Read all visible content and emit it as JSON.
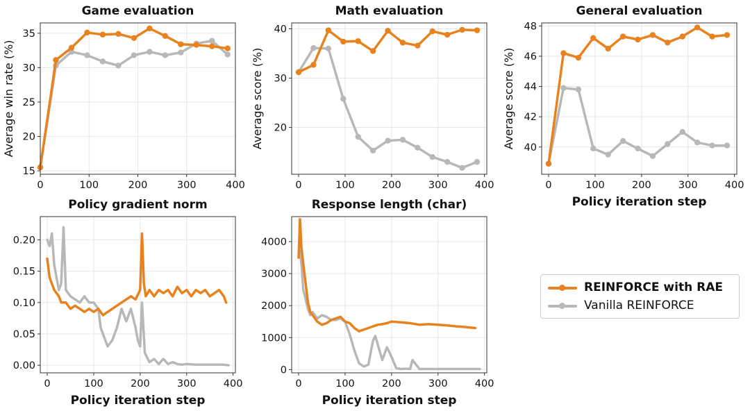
{
  "colors": {
    "rae": "#e8821e",
    "vanilla": "#b8b8b8"
  },
  "legend": [
    {
      "label": "REINFORCE with RAE",
      "series": "rae",
      "bold": true
    },
    {
      "label": "Vanilla REINFORCE",
      "series": "vanilla",
      "bold": false
    }
  ],
  "chart_data": [
    {
      "type": "line",
      "title": "Game evaluation",
      "xlabel": "",
      "ylabel": "Average win rate (%)",
      "xlim": [
        0,
        400
      ],
      "ylim": [
        14.5,
        36.5
      ],
      "xticks": [
        0,
        100,
        200,
        300,
        400
      ],
      "yticks": [
        15,
        20,
        25,
        30,
        35
      ],
      "grid": true,
      "markers": true,
      "series": [
        {
          "name": "REINFORCE with RAE",
          "key": "rae",
          "x": [
            0,
            32,
            64,
            96,
            128,
            160,
            192,
            224,
            256,
            288,
            320,
            352,
            384
          ],
          "y": [
            15.5,
            31.1,
            32.9,
            35.1,
            34.8,
            34.9,
            34.3,
            35.7,
            34.6,
            33.4,
            33.3,
            33.1,
            32.8
          ]
        },
        {
          "name": "Vanilla REINFORCE",
          "key": "vanilla",
          "x": [
            0,
            32,
            64,
            96,
            128,
            160,
            192,
            224,
            256,
            288,
            320,
            352,
            384
          ],
          "y": [
            15.5,
            30.3,
            32.3,
            31.8,
            30.9,
            30.3,
            31.8,
            32.3,
            31.8,
            32.2,
            33.5,
            33.9,
            31.9
          ]
        }
      ]
    },
    {
      "type": "line",
      "title": "Math evaluation",
      "xlabel": "",
      "ylabel": "Average score (%)",
      "xlim": [
        -15,
        405
      ],
      "ylim": [
        10.5,
        41.2
      ],
      "xticks": [
        0,
        100,
        200,
        300,
        400
      ],
      "yticks": [
        20,
        30,
        40
      ],
      "grid": true,
      "markers": true,
      "series": [
        {
          "name": "REINFORCE with RAE",
          "key": "rae",
          "x": [
            0,
            32,
            64,
            96,
            128,
            160,
            192,
            224,
            256,
            288,
            320,
            352,
            384
          ],
          "y": [
            31.2,
            32.7,
            39.7,
            37.4,
            37.5,
            35.5,
            39.6,
            37.2,
            36.6,
            39.5,
            38.8,
            39.8,
            39.7
          ]
        },
        {
          "name": "Vanilla REINFORCE",
          "key": "vanilla",
          "x": [
            0,
            32,
            64,
            96,
            128,
            160,
            192,
            224,
            256,
            288,
            320,
            352,
            384
          ],
          "y": [
            31.2,
            36.1,
            36.0,
            25.8,
            18.1,
            15.3,
            17.3,
            17.5,
            15.9,
            14.0,
            13.0,
            11.8,
            13.0
          ]
        }
      ]
    },
    {
      "type": "line",
      "title": "General evaluation",
      "xlabel": "Policy iteration step",
      "ylabel": "Average score (%)",
      "xlim": [
        -15,
        405
      ],
      "ylim": [
        38.2,
        48.2
      ],
      "xticks": [
        0,
        100,
        200,
        300,
        400
      ],
      "yticks": [
        40,
        42,
        44,
        46,
        48
      ],
      "grid": true,
      "markers": true,
      "series": [
        {
          "name": "REINFORCE with RAE",
          "key": "rae",
          "x": [
            0,
            32,
            64,
            96,
            128,
            160,
            192,
            224,
            256,
            288,
            320,
            352,
            384
          ],
          "y": [
            38.9,
            46.2,
            45.9,
            47.2,
            46.5,
            47.3,
            47.1,
            47.4,
            46.9,
            47.3,
            47.9,
            47.3,
            47.4
          ]
        },
        {
          "name": "Vanilla REINFORCE",
          "key": "vanilla",
          "x": [
            0,
            32,
            64,
            96,
            128,
            160,
            192,
            224,
            256,
            288,
            320,
            352,
            384
          ],
          "y": [
            38.9,
            43.9,
            43.8,
            39.9,
            39.5,
            40.4,
            39.9,
            39.4,
            40.2,
            41.0,
            40.3,
            40.1,
            40.1
          ]
        }
      ]
    },
    {
      "type": "line",
      "title": "Policy gradient norm",
      "xlabel": "Policy iteration step",
      "ylabel": "",
      "xlim": [
        -15,
        405
      ],
      "ylim": [
        -0.012,
        0.237
      ],
      "xticks": [
        0,
        100,
        200,
        300,
        400
      ],
      "yticks": [
        0.0,
        0.05,
        0.1,
        0.15,
        0.2
      ],
      "ytick_labels": [
        "0.00",
        "0.05",
        "0.10",
        "0.15",
        "0.20"
      ],
      "grid": true,
      "markers": false,
      "series": [
        {
          "name": "REINFORCE with RAE",
          "key": "rae",
          "x": [
            0,
            5,
            10,
            15,
            20,
            25,
            30,
            40,
            50,
            60,
            70,
            80,
            90,
            100,
            110,
            120,
            130,
            140,
            150,
            160,
            170,
            180,
            190,
            200,
            204,
            208,
            212,
            220,
            230,
            240,
            250,
            260,
            270,
            280,
            290,
            300,
            310,
            320,
            330,
            340,
            350,
            360,
            370,
            380,
            385
          ],
          "y": [
            0.17,
            0.14,
            0.13,
            0.12,
            0.115,
            0.11,
            0.1,
            0.1,
            0.09,
            0.095,
            0.09,
            0.085,
            0.09,
            0.085,
            0.09,
            0.08,
            0.085,
            0.09,
            0.095,
            0.1,
            0.105,
            0.11,
            0.105,
            0.12,
            0.21,
            0.13,
            0.11,
            0.12,
            0.11,
            0.12,
            0.115,
            0.12,
            0.11,
            0.125,
            0.115,
            0.12,
            0.11,
            0.12,
            0.115,
            0.12,
            0.11,
            0.115,
            0.12,
            0.11,
            0.1
          ]
        },
        {
          "name": "Vanilla REINFORCE",
          "key": "vanilla",
          "x": [
            0,
            5,
            10,
            15,
            20,
            25,
            30,
            35,
            40,
            50,
            60,
            70,
            80,
            90,
            100,
            110,
            115,
            120,
            130,
            140,
            150,
            160,
            170,
            180,
            190,
            195,
            200,
            204,
            210,
            220,
            230,
            240,
            250,
            260,
            270,
            280,
            290,
            300,
            320,
            340,
            360,
            380,
            390
          ],
          "y": [
            0.2,
            0.19,
            0.21,
            0.16,
            0.14,
            0.12,
            0.13,
            0.22,
            0.12,
            0.11,
            0.105,
            0.1,
            0.11,
            0.1,
            0.1,
            0.09,
            0.06,
            0.05,
            0.03,
            0.04,
            0.06,
            0.09,
            0.07,
            0.09,
            0.06,
            0.04,
            0.03,
            0.1,
            0.02,
            0.005,
            0.01,
            0.002,
            0.01,
            0.002,
            0.005,
            0.002,
            0.001,
            0.002,
            0.001,
            0.001,
            0.001,
            0.001,
            0.0
          ]
        }
      ]
    },
    {
      "type": "line",
      "title": "Response length (char)",
      "xlabel": "Policy iteration step",
      "ylabel": "",
      "xlim": [
        -15,
        405
      ],
      "ylim": [
        -100,
        4780
      ],
      "xticks": [
        0,
        100,
        200,
        300,
        400
      ],
      "yticks": [
        0,
        1000,
        2000,
        3000,
        4000
      ],
      "grid": true,
      "markers": false,
      "series": [
        {
          "name": "REINFORCE with RAE",
          "key": "rae",
          "x": [
            0,
            3,
            6,
            10,
            15,
            20,
            25,
            30,
            40,
            50,
            60,
            70,
            80,
            90,
            100,
            110,
            120,
            130,
            140,
            150,
            160,
            170,
            180,
            190,
            200,
            220,
            240,
            260,
            280,
            300,
            320,
            340,
            360,
            380
          ],
          "y": [
            3500,
            4700,
            3800,
            3300,
            2700,
            2100,
            1800,
            1700,
            1500,
            1400,
            1450,
            1550,
            1600,
            1650,
            1500,
            1450,
            1300,
            1200,
            1250,
            1300,
            1350,
            1400,
            1420,
            1450,
            1500,
            1480,
            1450,
            1400,
            1420,
            1400,
            1380,
            1350,
            1330,
            1300
          ]
        },
        {
          "name": "Vanilla REINFORCE",
          "key": "vanilla",
          "x": [
            0,
            3,
            6,
            10,
            15,
            20,
            25,
            30,
            40,
            50,
            60,
            70,
            80,
            90,
            100,
            110,
            120,
            130,
            140,
            150,
            160,
            165,
            170,
            180,
            190,
            200,
            210,
            220,
            230,
            240,
            245,
            260,
            300,
            340,
            380,
            390
          ],
          "y": [
            3500,
            3700,
            3300,
            2500,
            2200,
            1900,
            1700,
            1800,
            1600,
            1700,
            1650,
            1550,
            1550,
            1600,
            1500,
            1100,
            600,
            200,
            100,
            150,
            900,
            1050,
            800,
            300,
            700,
            400,
            50,
            20,
            30,
            20,
            300,
            20,
            20,
            20,
            20,
            20
          ]
        }
      ]
    }
  ]
}
